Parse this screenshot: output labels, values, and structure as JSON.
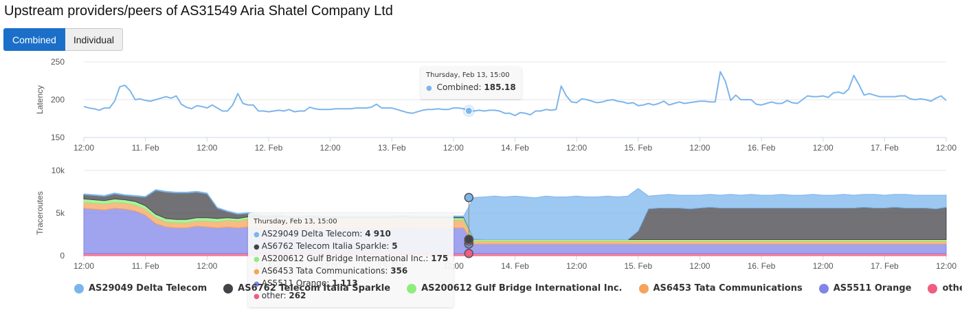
{
  "title": "Upstream providers/peers of AS31549 Aria Shatel Company Ltd",
  "toggle": {
    "combined_label": "Combined",
    "individual_label": "Individual",
    "selected": "Combined"
  },
  "latency_tooltip": {
    "date": "Thursday, Feb 13, 15:00",
    "series": "Combined",
    "value": "185.18"
  },
  "traceroutes_tooltip": {
    "date": "Thursday, Feb 13, 15:00",
    "rows": [
      {
        "label": "AS29049 Delta Telecom",
        "value": "4 910",
        "color": "#7cb5ec"
      },
      {
        "label": "AS6762 Telecom Italia Sparkle",
        "value": "5",
        "color": "#434348"
      },
      {
        "label": "AS200612 Gulf Bridge International Inc.",
        "value": "175",
        "color": "#90ed7d"
      },
      {
        "label": "AS6453 Tata Communications",
        "value": "356",
        "color": "#f7a35c"
      },
      {
        "label": "AS5511 Orange",
        "value": "1 113",
        "color": "#8085e9"
      },
      {
        "label": "other",
        "value": "262",
        "color": "#f15c80"
      }
    ]
  },
  "legend": [
    {
      "label": "AS29049 Delta Telecom",
      "color": "#7cb5ec"
    },
    {
      "label": "AS6762 Telecom Italia Sparkle",
      "color": "#434348"
    },
    {
      "label": "AS200612 Gulf Bridge International Inc.",
      "color": "#90ed7d"
    },
    {
      "label": "AS6453 Tata Communications",
      "color": "#f7a35c"
    },
    {
      "label": "AS5511 Orange",
      "color": "#8085e9"
    },
    {
      "label": "other",
      "color": "#f15c80"
    }
  ],
  "chart_data": [
    {
      "type": "line",
      "ylabel": "Latency",
      "ylim": [
        150,
        250
      ],
      "yticks": [
        150,
        200,
        250
      ],
      "xlim_hours": [
        0,
        168
      ],
      "xticks": [
        {
          "h": 0,
          "label": "12:00"
        },
        {
          "h": 12,
          "label": "11. Feb"
        },
        {
          "h": 24,
          "label": "12:00"
        },
        {
          "h": 36,
          "label": "12. Feb"
        },
        {
          "h": 48,
          "label": "12:00"
        },
        {
          "h": 60,
          "label": "13. Feb"
        },
        {
          "h": 72,
          "label": "12:00"
        },
        {
          "h": 84,
          "label": "14. Feb"
        },
        {
          "h": 96,
          "label": "12:00"
        },
        {
          "h": 108,
          "label": "15. Feb"
        },
        {
          "h": 120,
          "label": "12:00"
        },
        {
          "h": 132,
          "label": "16. Feb"
        },
        {
          "h": 144,
          "label": "12:00"
        },
        {
          "h": 156,
          "label": "17. Feb"
        },
        {
          "h": 168,
          "label": "12:00"
        }
      ],
      "series": [
        {
          "name": "Combined",
          "color": "#7cb5ec",
          "x": [
            0,
            1,
            2,
            3,
            4,
            5,
            6,
            7,
            8,
            9,
            10,
            11,
            12,
            13,
            14,
            15,
            16,
            17,
            18,
            19,
            20,
            21,
            22,
            23,
            24,
            25,
            26,
            27,
            28,
            29,
            30,
            31,
            32,
            33,
            34,
            35,
            36,
            37,
            38,
            39,
            40,
            41,
            42,
            43,
            44,
            45,
            46,
            47,
            48,
            49,
            50,
            51,
            52,
            53,
            54,
            55,
            56,
            57,
            58,
            59,
            60,
            61,
            62,
            63,
            64,
            65,
            66,
            67,
            68,
            69,
            70,
            71,
            72,
            73,
            74,
            75,
            76,
            77,
            78,
            79,
            80,
            81,
            82,
            83,
            84,
            85,
            86,
            87,
            88,
            89,
            90,
            91,
            92,
            93,
            94,
            95,
            96,
            97,
            98,
            99,
            100,
            101,
            102,
            103,
            104,
            105,
            106,
            107,
            108,
            109,
            110,
            111,
            112,
            113,
            114,
            115,
            116,
            117,
            118,
            119,
            120,
            121,
            122,
            123,
            124,
            125,
            126,
            127,
            128,
            129,
            130,
            131,
            132,
            133,
            134,
            135,
            136,
            137,
            138,
            139,
            140,
            141,
            142,
            143,
            144,
            145,
            146,
            147,
            148,
            149,
            150,
            151,
            152,
            153,
            154,
            155,
            156,
            157,
            158,
            159,
            160,
            161,
            162,
            163,
            164,
            165,
            166,
            167,
            168
          ],
          "y": [
            191,
            189,
            188,
            186,
            189,
            189,
            198,
            217,
            219,
            212,
            200,
            201,
            199,
            198,
            200,
            202,
            204,
            202,
            205,
            194,
            190,
            188,
            192,
            191,
            189,
            193,
            189,
            185,
            185,
            193,
            208,
            195,
            193,
            193,
            185,
            185,
            184,
            185,
            186,
            185,
            187,
            184,
            185,
            185,
            190,
            188,
            187,
            187,
            187,
            188,
            188,
            188,
            188,
            189,
            189,
            189,
            190,
            194,
            189,
            189,
            189,
            187,
            185,
            183,
            182,
            184,
            186,
            187,
            187,
            188,
            187,
            187,
            189,
            189,
            188,
            185,
            185,
            186,
            185,
            186,
            186,
            185,
            182,
            182,
            179,
            183,
            182,
            180,
            185,
            185,
            187,
            186,
            187,
            218,
            205,
            197,
            196,
            201,
            200,
            198,
            196,
            197,
            199,
            200,
            198,
            197,
            195,
            196,
            192,
            193,
            195,
            193,
            195,
            198,
            193,
            195,
            197,
            195,
            196,
            197,
            198,
            198,
            197,
            197,
            237,
            224,
            199,
            206,
            200,
            200,
            200,
            194,
            193,
            195,
            197,
            195,
            195,
            199,
            196,
            195,
            200,
            205,
            204,
            204,
            205,
            203,
            209,
            210,
            208,
            214,
            232,
            220,
            206,
            208,
            206,
            204,
            204,
            204,
            204,
            205,
            205,
            201,
            200,
            201,
            200,
            198,
            202,
            205,
            199
          ]
        }
      ],
      "annotation": {
        "x": 75,
        "value": 185.18
      }
    },
    {
      "type": "area",
      "stacked": true,
      "ylabel": "Traceroutes",
      "ylim": [
        0,
        10000
      ],
      "yticks": [
        0,
        5000,
        10000
      ],
      "ytick_labels": [
        "0",
        "5k",
        "10k"
      ],
      "xlim_hours": [
        0,
        168
      ],
      "x_step_hours": 2,
      "series": [
        {
          "name": "other",
          "color": "#f15c80",
          "values": [
            260,
            262,
            262,
            262,
            262,
            262,
            262,
            262,
            262,
            262,
            262,
            262,
            262,
            262,
            262,
            262,
            262,
            262,
            262,
            262,
            262,
            262,
            262,
            262,
            262,
            262,
            262,
            262,
            262,
            262,
            262,
            262,
            262,
            262,
            262,
            262,
            262,
            262,
            262,
            262,
            262,
            262,
            262,
            262,
            262,
            262,
            262,
            262,
            262,
            262,
            262,
            262,
            262,
            262,
            262,
            262,
            262,
            262,
            262,
            262,
            262,
            262,
            262,
            262,
            262,
            262,
            262,
            262,
            262,
            262,
            262,
            262,
            262,
            262,
            262,
            262,
            262,
            262,
            262,
            262,
            262,
            262,
            262,
            262,
            262
          ]
        },
        {
          "name": "AS5511 Orange",
          "color": "#8085e9",
          "values": [
            5300,
            5200,
            5100,
            5300,
            5200,
            5000,
            4500,
            3500,
            3100,
            3000,
            3000,
            3200,
            3100,
            3000,
            3100,
            3000,
            3100,
            3000,
            3000,
            3100,
            3000,
            3000,
            3100,
            3000,
            3000,
            3000,
            3000,
            3000,
            3000,
            3000,
            3000,
            3100,
            3000,
            3000,
            3000,
            3000,
            3000,
            3000,
            1113,
            1100,
            1100,
            1100,
            1100,
            1100,
            1100,
            1100,
            1100,
            1100,
            1100,
            1100,
            1100,
            1100,
            1100,
            1100,
            1100,
            1100,
            1100,
            1100,
            1100,
            1100,
            1100,
            1100,
            1100,
            1100,
            1100,
            1100,
            1100,
            1100,
            1100,
            1100,
            1100,
            1100,
            1100,
            1100,
            1100,
            1100,
            1100,
            1100,
            1100,
            1100,
            1100,
            1100,
            1100,
            1100,
            1100
          ]
        },
        {
          "name": "AS6453 Tata Communications",
          "color": "#f7a35c",
          "values": [
            700,
            700,
            700,
            700,
            700,
            700,
            700,
            700,
            600,
            600,
            600,
            600,
            700,
            700,
            800,
            800,
            900,
            900,
            900,
            900,
            900,
            900,
            900,
            900,
            900,
            900,
            900,
            900,
            900,
            900,
            900,
            900,
            900,
            900,
            900,
            900,
            900,
            900,
            356,
            356,
            356,
            356,
            356,
            356,
            356,
            356,
            356,
            356,
            356,
            356,
            356,
            356,
            356,
            356,
            356,
            356,
            356,
            356,
            356,
            356,
            356,
            356,
            356,
            356,
            356,
            356,
            356,
            356,
            356,
            356,
            356,
            356,
            356,
            356,
            356,
            356,
            356,
            356,
            356,
            356,
            356,
            356,
            356,
            356,
            356
          ]
        },
        {
          "name": "AS200612 Gulf Bridge International Inc.",
          "color": "#90ed7d",
          "values": [
            400,
            400,
            400,
            400,
            400,
            400,
            400,
            400,
            400,
            400,
            400,
            400,
            400,
            400,
            300,
            300,
            300,
            300,
            300,
            300,
            300,
            300,
            300,
            300,
            300,
            300,
            300,
            300,
            300,
            300,
            300,
            300,
            300,
            300,
            300,
            300,
            300,
            300,
            175,
            175,
            175,
            175,
            175,
            175,
            175,
            175,
            175,
            175,
            175,
            175,
            175,
            175,
            175,
            175,
            175,
            175,
            175,
            175,
            175,
            175,
            175,
            175,
            175,
            175,
            175,
            175,
            175,
            175,
            175,
            175,
            175,
            175,
            175,
            175,
            175,
            175,
            175,
            175,
            175,
            175,
            175,
            175,
            175,
            175,
            175
          ]
        },
        {
          "name": "AS6762 Telecom Italia Sparkle",
          "color": "#434348",
          "values": [
            500,
            500,
            500,
            600,
            500,
            600,
            1000,
            2800,
            3100,
            3100,
            3100,
            3000,
            2800,
            1200,
            700,
            500,
            400,
            300,
            200,
            200,
            100,
            100,
            100,
            100,
            100,
            100,
            100,
            100,
            100,
            100,
            100,
            100,
            100,
            100,
            100,
            100,
            100,
            100,
            5,
            5,
            5,
            5,
            5,
            5,
            5,
            5,
            5,
            5,
            5,
            5,
            5,
            5,
            5,
            5,
            1000,
            3600,
            3700,
            3700,
            3700,
            3600,
            3700,
            3800,
            3700,
            3700,
            3700,
            3700,
            3700,
            3700,
            3700,
            3700,
            3700,
            3700,
            3700,
            3700,
            3700,
            3700,
            3800,
            3700,
            3700,
            3800,
            3700,
            3700,
            3700,
            3600,
            3800
          ]
        },
        {
          "name": "AS29049 Delta Telecom",
          "color": "#7cb5ec",
          "values": [
            100,
            100,
            100,
            100,
            100,
            100,
            100,
            100,
            100,
            100,
            100,
            100,
            100,
            100,
            100,
            100,
            100,
            100,
            100,
            100,
            100,
            100,
            100,
            100,
            100,
            100,
            100,
            100,
            100,
            100,
            100,
            100,
            100,
            100,
            100,
            100,
            100,
            100,
            4910,
            5000,
            5100,
            5000,
            5100,
            5000,
            4900,
            5100,
            5000,
            5000,
            5100,
            5000,
            5000,
            5100,
            5000,
            5100,
            5000,
            1500,
            1500,
            1600,
            1500,
            1600,
            1500,
            1500,
            1500,
            1600,
            1500,
            1600,
            1500,
            1500,
            1600,
            1500,
            1500,
            1600,
            1500,
            1500,
            1600,
            1500,
            1500,
            1600,
            1500,
            1500,
            1600,
            1500,
            1500,
            1600,
            1400
          ]
        }
      ],
      "annotation": {
        "x": 75
      }
    }
  ]
}
